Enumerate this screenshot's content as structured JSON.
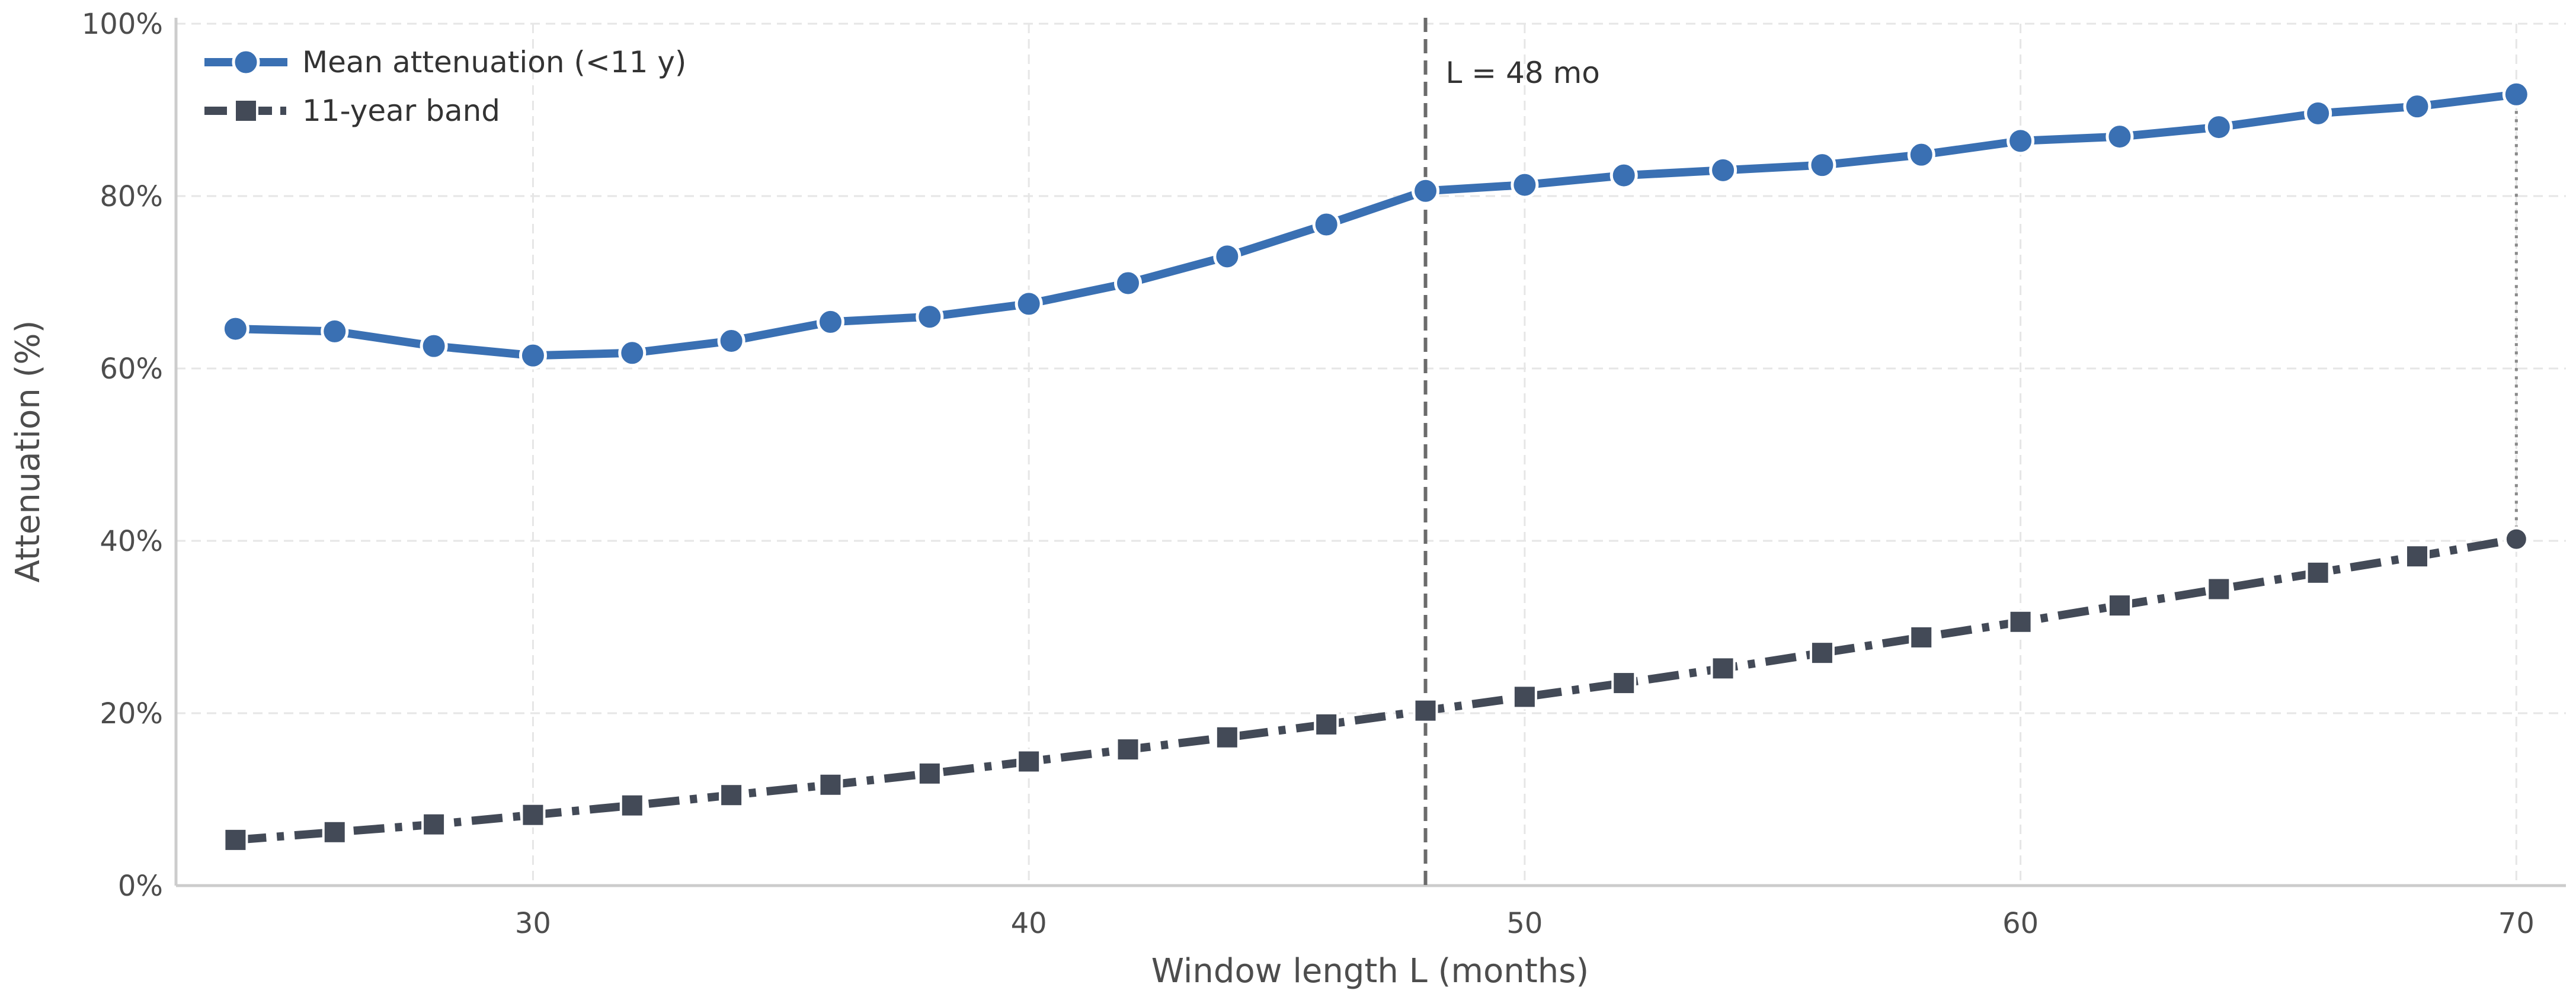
{
  "chart_data": {
    "type": "line",
    "xlabel": "Window length L (months)",
    "ylabel": "Attenuation (%)",
    "xlim": [
      22.8,
      71.0
    ],
    "ylim": [
      0,
      100
    ],
    "x_ticks": [
      30,
      40,
      50,
      60,
      70
    ],
    "y_ticks": [
      0,
      20,
      40,
      60,
      80,
      100
    ],
    "y_tick_labels": [
      "0%",
      "20%",
      "40%",
      "60%",
      "80%",
      "100%"
    ],
    "grid": true,
    "legend_position": "top-left",
    "x": [
      24,
      26,
      28,
      30,
      32,
      34,
      36,
      38,
      40,
      42,
      44,
      46,
      48,
      50,
      52,
      54,
      56,
      58,
      60,
      62,
      64,
      66,
      68,
      70
    ],
    "series": [
      {
        "name": "Mean attenuation (<11 y)",
        "color": "#3a70b3",
        "marker": "circle",
        "line_style": "solid",
        "values": [
          64.6,
          64.3,
          62.6,
          61.5,
          61.8,
          63.2,
          65.4,
          66.0,
          67.5,
          69.9,
          73.0,
          76.7,
          80.6,
          81.3,
          82.4,
          83.0,
          83.6,
          84.8,
          86.4,
          86.9,
          88.0,
          89.6,
          90.4,
          91.8
        ]
      },
      {
        "name": "11-year band",
        "color": "#434a57",
        "marker": "square",
        "line_style": "dashdot",
        "values": [
          5.3,
          6.2,
          7.1,
          8.2,
          9.3,
          10.5,
          11.7,
          13.0,
          14.4,
          15.8,
          17.2,
          18.7,
          20.3,
          21.9,
          23.5,
          25.2,
          27.0,
          28.8,
          30.6,
          32.5,
          34.4,
          36.3,
          38.2,
          40.2
        ]
      }
    ],
    "annotations": [
      {
        "type": "vertical-line",
        "x": 48,
        "label": "L = 48 mo",
        "style": "dashed",
        "color": "#6b6b6b"
      },
      {
        "type": "vertical-segment",
        "x": 70,
        "from": 40.2,
        "to": 91.8,
        "style": "dotted",
        "color": "#8a8a8a"
      }
    ]
  }
}
